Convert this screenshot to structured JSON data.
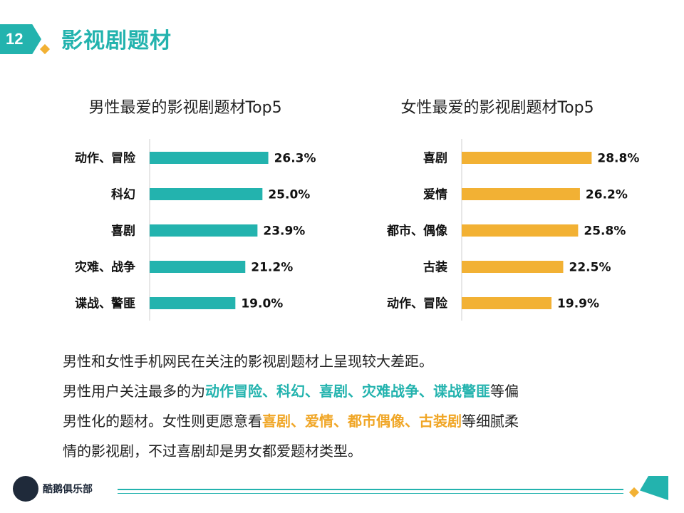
{
  "header": {
    "page_number": "12",
    "title": "影视剧题材"
  },
  "chart_data": [
    {
      "type": "bar",
      "orientation": "horizontal",
      "title": "男性最爱的影视剧题材Top5",
      "categories": [
        "动作、冒险",
        "科幻",
        "喜剧",
        "灾难、战争",
        "谍战、警匪"
      ],
      "values": [
        26.3,
        25.0,
        23.9,
        21.2,
        19.0
      ],
      "value_labels": [
        "26.3%",
        "25.0%",
        "23.9%",
        "21.2%",
        "19.0%"
      ],
      "color": "#23b3ae",
      "xlim": [
        0,
        30
      ],
      "grid": false
    },
    {
      "type": "bar",
      "orientation": "horizontal",
      "title": "女性最爱的影视剧题材Top5",
      "categories": [
        "喜剧",
        "爱情",
        "都市、偶像",
        "古装",
        "动作、冒险"
      ],
      "values": [
        28.8,
        26.2,
        25.8,
        22.5,
        19.9
      ],
      "value_labels": [
        "28.8%",
        "26.2%",
        "25.8%",
        "22.5%",
        "19.9%"
      ],
      "color": "#f2b134",
      "xlim": [
        0,
        30
      ],
      "grid": false
    }
  ],
  "body": {
    "line1": "男性和女性手机网民在关注的影视剧题材上呈现较大差距。",
    "line2_pre": "男性用户关注最多的为",
    "line2_hl": "动作冒险、科幻、喜剧、灾难战争、谍战警匪",
    "line2_post": "等偏",
    "line3_pre": "男性化的题材。女性则更愿意看",
    "line3_hl": "喜剧、爱情、都市偶像、古装剧",
    "line3_post": "等细腻柔",
    "line4": "情的影视剧，不过喜剧却是男女都爱题材类型。"
  },
  "footer": {
    "brand": "酷鹅俱乐部"
  }
}
